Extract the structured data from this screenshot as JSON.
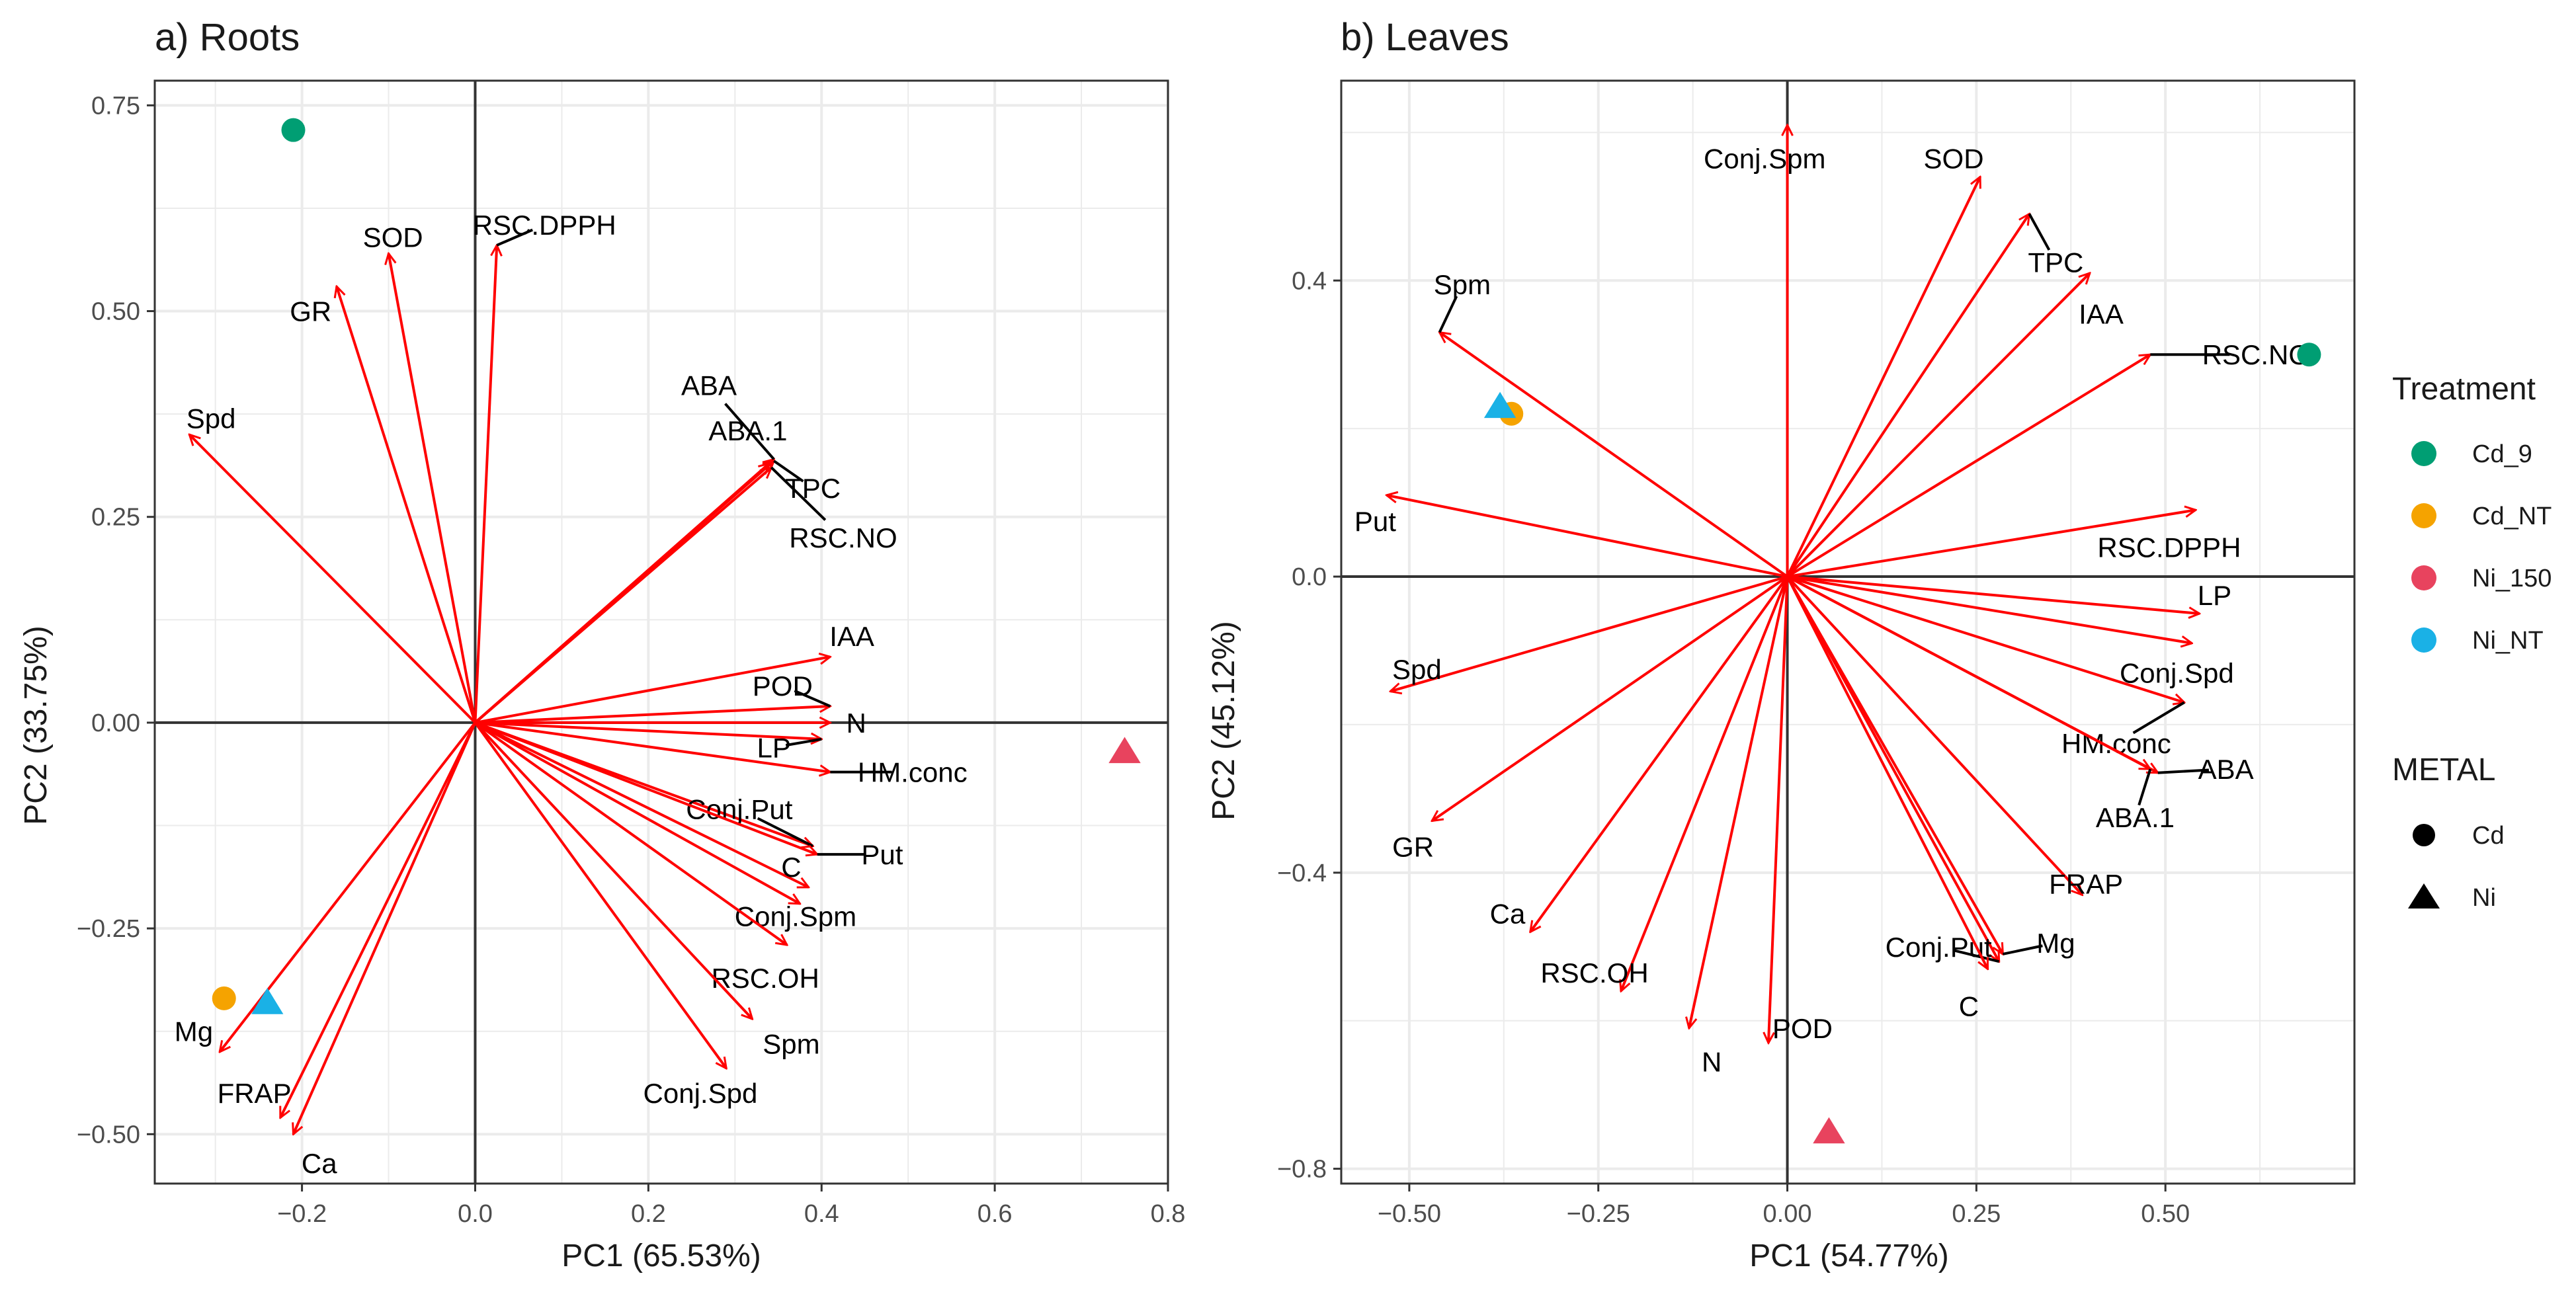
{
  "colors": {
    "arrow": "#ff0000",
    "grid": "#ebebeb",
    "axis_zero": "#333333",
    "panel_border": "#333333",
    "Cd_9": "#009e73",
    "Cd_NT": "#f5a300",
    "Ni_150": "#e8435e",
    "Ni_NT": "#1ab1e6"
  },
  "legend": {
    "treatment_title": "Treatment",
    "treatments": [
      "Cd_9",
      "Cd_NT",
      "Ni_150",
      "Ni_NT"
    ],
    "metal_title": "METAL",
    "metals": [
      {
        "name": "Cd",
        "shape": "circle"
      },
      {
        "name": "Ni",
        "shape": "triangle"
      }
    ]
  },
  "chart_data": [
    {
      "type": "scatter",
      "subtype": "pca-biplot",
      "title": "a) Roots",
      "xlabel": "PC1 (65.53%)",
      "ylabel": "PC2 (33.75%)",
      "xlim": [
        -0.37,
        0.8
      ],
      "ylim": [
        -0.56,
        0.78
      ],
      "xticks": [
        -0.2,
        0.0,
        0.2,
        0.4,
        0.6,
        0.8
      ],
      "xtick_labels": [
        "−0.2",
        "0.0",
        "0.2",
        "0.4",
        "0.6",
        "0.8"
      ],
      "yticks": [
        -0.5,
        -0.25,
        0.0,
        0.25,
        0.5,
        0.75
      ],
      "ytick_labels": [
        "−0.50",
        "−0.25",
        "0.00",
        "0.25",
        "0.50",
        "0.75"
      ],
      "vectors": [
        {
          "name": "SOD",
          "x": -0.1,
          "y": 0.57,
          "lx": -0.095,
          "ly": 0.59
        },
        {
          "name": "RSC.DPPH",
          "x": 0.025,
          "y": 0.58,
          "lx": 0.08,
          "ly": 0.605
        },
        {
          "name": "GR",
          "x": -0.16,
          "y": 0.53,
          "lx": -0.19,
          "ly": 0.5
        },
        {
          "name": "Spd",
          "x": -0.33,
          "y": 0.35,
          "lx": -0.305,
          "ly": 0.37
        },
        {
          "name": "ABA",
          "x": 0.345,
          "y": 0.32,
          "lx": 0.27,
          "ly": 0.41
        },
        {
          "name": "ABA.1",
          "x": 0.34,
          "y": 0.315,
          "lx": 0.315,
          "ly": 0.355
        },
        {
          "name": "TPC",
          "x": 0.345,
          "y": 0.318,
          "lx": 0.39,
          "ly": 0.285
        },
        {
          "name": "RSC.NO",
          "x": 0.342,
          "y": 0.31,
          "lx": 0.425,
          "ly": 0.225
        },
        {
          "name": "IAA",
          "x": 0.41,
          "y": 0.08,
          "lx": 0.435,
          "ly": 0.105
        },
        {
          "name": "POD",
          "x": 0.41,
          "y": 0.02,
          "lx": 0.355,
          "ly": 0.045
        },
        {
          "name": "N",
          "x": 0.41,
          "y": 0.0,
          "lx": 0.44,
          "ly": 0.0
        },
        {
          "name": "LP",
          "x": 0.4,
          "y": -0.02,
          "lx": 0.345,
          "ly": -0.03
        },
        {
          "name": "HM.conc",
          "x": 0.41,
          "y": -0.06,
          "lx": 0.505,
          "ly": -0.06
        },
        {
          "name": "Conj.Put",
          "x": 0.39,
          "y": -0.15,
          "lx": 0.305,
          "ly": -0.105
        },
        {
          "name": "Put",
          "x": 0.395,
          "y": -0.16,
          "lx": 0.47,
          "ly": -0.16
        },
        {
          "name": "C",
          "x": 0.385,
          "y": -0.2,
          "lx": 0.365,
          "ly": -0.175
        },
        {
          "name": "Conj.Spm",
          "x": 0.375,
          "y": -0.22,
          "lx": 0.37,
          "ly": -0.235
        },
        {
          "name": "RSC.OH",
          "x": 0.36,
          "y": -0.27,
          "lx": 0.335,
          "ly": -0.31
        },
        {
          "name": "Spm",
          "x": 0.32,
          "y": -0.36,
          "lx": 0.365,
          "ly": -0.39
        },
        {
          "name": "Conj.Spd",
          "x": 0.29,
          "y": -0.42,
          "lx": 0.26,
          "ly": -0.45
        },
        {
          "name": "Mg",
          "x": -0.295,
          "y": -0.4,
          "lx": -0.325,
          "ly": -0.375
        },
        {
          "name": "FRAP",
          "x": -0.225,
          "y": -0.48,
          "lx": -0.255,
          "ly": -0.45
        },
        {
          "name": "Ca",
          "x": -0.21,
          "y": -0.5,
          "lx": -0.18,
          "ly": -0.535
        }
      ],
      "points": [
        {
          "treatment": "Cd_9",
          "metal": "Cd",
          "x": -0.21,
          "y": 0.72
        },
        {
          "treatment": "Cd_NT",
          "metal": "Cd",
          "x": -0.29,
          "y": -0.335
        },
        {
          "treatment": "Ni_NT",
          "metal": "Ni",
          "x": -0.24,
          "y": -0.34
        },
        {
          "treatment": "Ni_150",
          "metal": "Ni",
          "x": 0.75,
          "y": -0.035
        }
      ]
    },
    {
      "type": "scatter",
      "subtype": "pca-biplot",
      "title": "b) Leaves",
      "xlabel": "PC1 (54.77%)",
      "ylabel": "PC2 (45.12%)",
      "xlim": [
        -0.59,
        0.75
      ],
      "ylim": [
        -0.82,
        0.67
      ],
      "xticks": [
        -0.5,
        -0.25,
        0.0,
        0.25,
        0.5
      ],
      "xtick_labels": [
        "−0.50",
        "−0.25",
        "0.00",
        "0.25",
        "0.50"
      ],
      "yticks": [
        -0.8,
        -0.4,
        0.0,
        0.4
      ],
      "ytick_labels": [
        "−0.8",
        "−0.4",
        "0.0",
        "0.4"
      ],
      "vectors": [
        {
          "name": "Conj.Spm",
          "x": 0.0,
          "y": 0.61,
          "lx": -0.03,
          "ly": 0.565
        },
        {
          "name": "SOD",
          "x": 0.255,
          "y": 0.54,
          "lx": 0.22,
          "ly": 0.565
        },
        {
          "name": "TPC",
          "x": 0.32,
          "y": 0.49,
          "lx": 0.355,
          "ly": 0.425
        },
        {
          "name": "IAA",
          "x": 0.4,
          "y": 0.41,
          "lx": 0.415,
          "ly": 0.355
        },
        {
          "name": "RSC.NO",
          "x": 0.48,
          "y": 0.3,
          "lx": 0.62,
          "ly": 0.3
        },
        {
          "name": "Spm",
          "x": -0.46,
          "y": 0.33,
          "lx": -0.43,
          "ly": 0.395
        },
        {
          "name": "Put",
          "x": -0.53,
          "y": 0.11,
          "lx": -0.545,
          "ly": 0.075
        },
        {
          "name": "RSC.DPPH",
          "x": 0.54,
          "y": 0.09,
          "lx": 0.505,
          "ly": 0.04
        },
        {
          "name": "LP",
          "x": 0.545,
          "y": -0.05,
          "lx": 0.565,
          "ly": -0.025
        },
        {
          "name": "Conj.Spd",
          "x": 0.535,
          "y": -0.09,
          "lx": 0.515,
          "ly": -0.13
        },
        {
          "name": "HM.conc",
          "x": 0.525,
          "y": -0.17,
          "lx": 0.435,
          "ly": -0.225
        },
        {
          "name": "ABA",
          "x": 0.49,
          "y": -0.265,
          "lx": 0.58,
          "ly": -0.26
        },
        {
          "name": "ABA.1",
          "x": 0.48,
          "y": -0.26,
          "lx": 0.46,
          "ly": -0.325
        },
        {
          "name": "FRAP",
          "x": 0.39,
          "y": -0.43,
          "lx": 0.395,
          "ly": -0.415
        },
        {
          "name": "Mg",
          "x": 0.285,
          "y": -0.51,
          "lx": 0.355,
          "ly": -0.495
        },
        {
          "name": "Conj.Put",
          "x": 0.28,
          "y": -0.52,
          "lx": 0.2,
          "ly": -0.5
        },
        {
          "name": "C",
          "x": 0.265,
          "y": -0.53,
          "lx": 0.24,
          "ly": -0.58
        },
        {
          "name": "Spd",
          "x": -0.525,
          "y": -0.155,
          "lx": -0.49,
          "ly": -0.125
        },
        {
          "name": "GR",
          "x": -0.47,
          "y": -0.33,
          "lx": -0.495,
          "ly": -0.365
        },
        {
          "name": "Ca",
          "x": -0.34,
          "y": -0.48,
          "lx": -0.37,
          "ly": -0.455
        },
        {
          "name": "RSC.OH",
          "x": -0.22,
          "y": -0.56,
          "lx": -0.255,
          "ly": -0.535
        },
        {
          "name": "N",
          "x": -0.13,
          "y": -0.61,
          "lx": -0.1,
          "ly": -0.655
        },
        {
          "name": "POD",
          "x": -0.025,
          "y": -0.63,
          "lx": 0.02,
          "ly": -0.61
        }
      ],
      "points": [
        {
          "treatment": "Cd_9",
          "metal": "Cd",
          "x": 0.69,
          "y": 0.3
        },
        {
          "treatment": "Cd_NT",
          "metal": "Cd",
          "x": -0.365,
          "y": 0.22
        },
        {
          "treatment": "Ni_NT",
          "metal": "Ni",
          "x": -0.38,
          "y": 0.23
        },
        {
          "treatment": "Ni_150",
          "metal": "Ni",
          "x": 0.055,
          "y": -0.75
        }
      ]
    }
  ]
}
